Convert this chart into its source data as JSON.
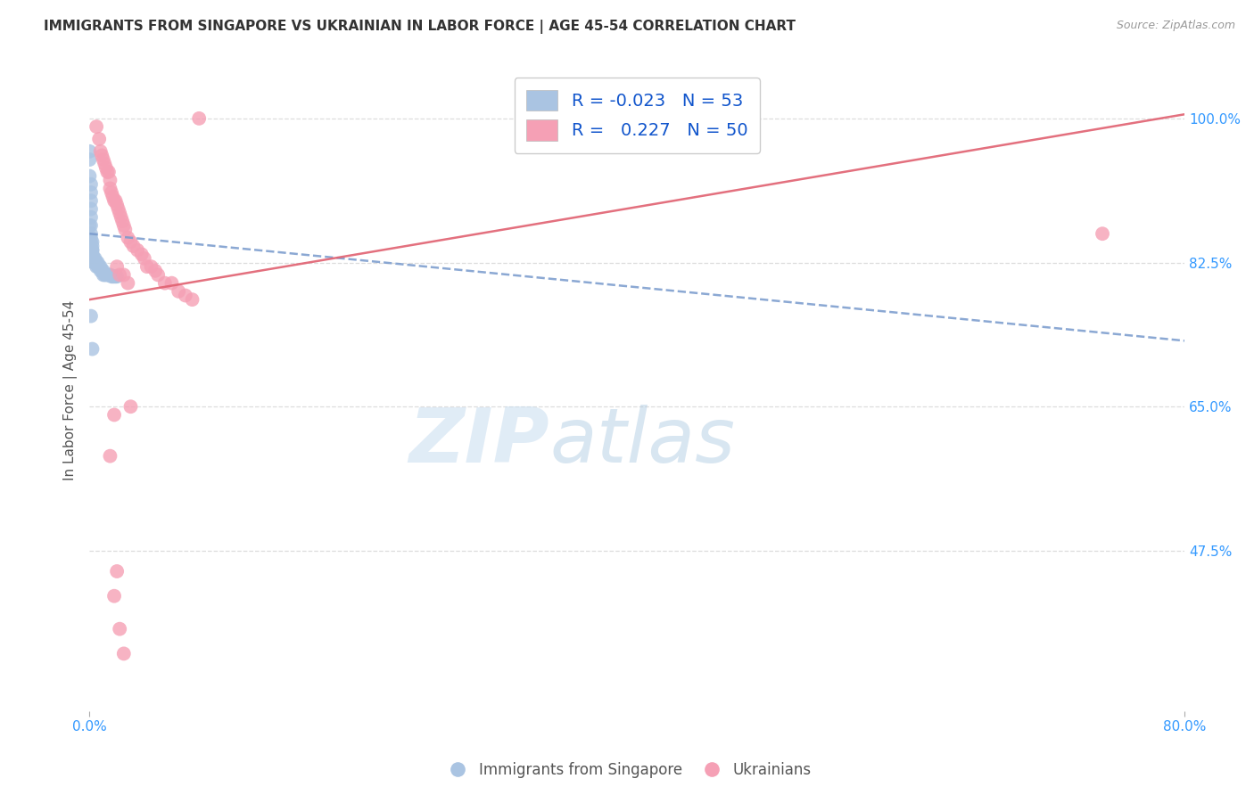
{
  "title": "IMMIGRANTS FROM SINGAPORE VS UKRAINIAN IN LABOR FORCE | AGE 45-54 CORRELATION CHART",
  "source": "Source: ZipAtlas.com",
  "ylabel": "In Labor Force | Age 45-54",
  "ytick_vals": [
    1.0,
    0.825,
    0.65,
    0.475
  ],
  "ytick_labels": [
    "100.0%",
    "82.5%",
    "65.0%",
    "47.5%"
  ],
  "xlim": [
    0.0,
    0.8
  ],
  "ylim": [
    0.28,
    1.06
  ],
  "legend_R_singapore": "-0.023",
  "legend_N_singapore": "53",
  "legend_R_ukrainian": "0.227",
  "legend_N_ukrainian": "50",
  "color_singapore": "#aac4e2",
  "color_ukrainian": "#f5a0b5",
  "trendline_singapore_color": "#7799cc",
  "trendline_ukrainian_color": "#e06070",
  "sg_x": [
    0.0,
    0.0,
    0.0,
    0.0,
    0.001,
    0.001,
    0.001,
    0.001,
    0.001,
    0.001,
    0.001,
    0.001,
    0.001,
    0.002,
    0.002,
    0.002,
    0.002,
    0.002,
    0.002,
    0.002,
    0.002,
    0.003,
    0.003,
    0.003,
    0.003,
    0.003,
    0.004,
    0.004,
    0.004,
    0.005,
    0.005,
    0.005,
    0.006,
    0.006,
    0.007,
    0.007,
    0.008,
    0.008,
    0.009,
    0.01,
    0.01,
    0.011,
    0.012,
    0.013,
    0.014,
    0.015,
    0.016,
    0.017,
    0.018,
    0.019,
    0.02,
    0.001,
    0.002
  ],
  "sg_y": [
    0.96,
    0.95,
    0.93,
    0.87,
    0.92,
    0.91,
    0.9,
    0.89,
    0.88,
    0.87,
    0.86,
    0.855,
    0.85,
    0.85,
    0.845,
    0.84,
    0.84,
    0.835,
    0.835,
    0.83,
    0.83,
    0.83,
    0.83,
    0.83,
    0.83,
    0.825,
    0.83,
    0.825,
    0.825,
    0.825,
    0.825,
    0.82,
    0.825,
    0.82,
    0.82,
    0.82,
    0.82,
    0.815,
    0.815,
    0.815,
    0.81,
    0.81,
    0.81,
    0.81,
    0.81,
    0.81,
    0.808,
    0.808,
    0.808,
    0.808,
    0.808,
    0.76,
    0.72
  ],
  "uk_x": [
    0.005,
    0.007,
    0.008,
    0.009,
    0.01,
    0.011,
    0.012,
    0.013,
    0.014,
    0.015,
    0.015,
    0.016,
    0.017,
    0.018,
    0.019,
    0.02,
    0.021,
    0.022,
    0.023,
    0.024,
    0.025,
    0.026,
    0.028,
    0.03,
    0.032,
    0.035,
    0.038,
    0.04,
    0.042,
    0.045,
    0.048,
    0.05,
    0.055,
    0.06,
    0.065,
    0.07,
    0.075,
    0.08,
    0.74,
    0.02,
    0.022,
    0.025,
    0.028,
    0.03,
    0.018,
    0.015,
    0.02,
    0.018,
    0.022,
    0.025
  ],
  "uk_y": [
    0.99,
    0.975,
    0.96,
    0.955,
    0.95,
    0.945,
    0.94,
    0.935,
    0.935,
    0.925,
    0.915,
    0.91,
    0.905,
    0.9,
    0.9,
    0.895,
    0.89,
    0.885,
    0.88,
    0.875,
    0.87,
    0.865,
    0.855,
    0.85,
    0.845,
    0.84,
    0.835,
    0.83,
    0.82,
    0.82,
    0.815,
    0.81,
    0.8,
    0.8,
    0.79,
    0.785,
    0.78,
    1.0,
    0.86,
    0.82,
    0.81,
    0.81,
    0.8,
    0.65,
    0.64,
    0.59,
    0.45,
    0.42,
    0.38,
    0.35
  ],
  "sg_trend_x0": 0.0,
  "sg_trend_x1": 0.8,
  "sg_trend_y0": 0.86,
  "sg_trend_y1": 0.73,
  "uk_trend_x0": 0.0,
  "uk_trend_x1": 0.8,
  "uk_trend_y0": 0.78,
  "uk_trend_y1": 1.005,
  "watermark_zip": "ZIP",
  "watermark_atlas": "atlas",
  "background_color": "#ffffff",
  "grid_color": "#dddddd"
}
